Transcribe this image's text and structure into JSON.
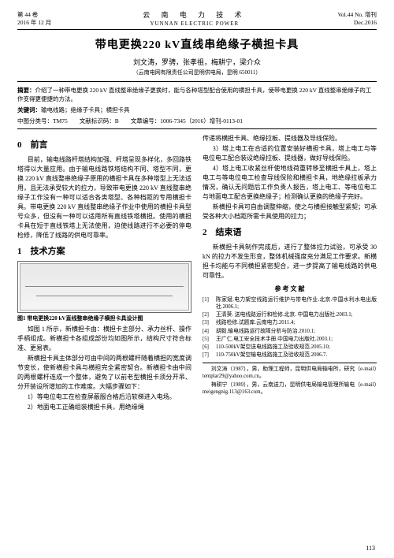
{
  "header": {
    "vol": "第 44 卷",
    "date": "2016 年 12 月",
    "journal_cn": "云 南 电 力 技 术",
    "journal_en": "YUNNAN ELECTRIC POWER",
    "vol_en": "Vol.44 No. 增刊",
    "date_en": "Dec.2016"
  },
  "title": "带电更换220 kV直线串绝缘子横担卡具",
  "authors": "刘文涛，罗骋，张孝祖，梅耕宁，梁介众",
  "affil": "（云南电网有限责任公司昆明供电局，昆明 650011）",
  "abstract": {
    "label": "摘要：",
    "text": "介绍了一种带电更换 220 kV 直线整串绝缘子更换时，能与各种塔型配合使用的横担卡具，使带电更换 220 kV 直线整串绝缘子的工作变得更便捷的方法。"
  },
  "keywords": {
    "label": "关键词：",
    "text": "输电线路；绝缘子卡具；横担卡具"
  },
  "class_line": "中图分类号：TM75　　文献标识码：B　　文章编号：1006-7345（2016）增刊-0113-01",
  "sec0": "0　前言",
  "p0a": "目前，输电线路杆塔结构加强、杆塔呈现多样化，多回路铁塔得以大量应用。由于输电线路铁塔结构不同、塔型不同，更换 220 kV 直线整串绝缘子原用的横担卡具在多种塔型上无法适用，且无法承受较大的拉力，导致带电更换 220 kV 直线整串绝缘子工作没有一种可以适合各类塔型、各种档距的专用横担卡具。带电更换 220 kV 直线整串绝缘子作业中使用的横担卡具型号众多，但没有一种可以适用所有直线铁塔横担。使用的横担卡具在短于直线铁塔上无法使用，迫使线路进行不必要的停电检修，降低了线路的供电可靠率。",
  "sec1": "1　技术方案",
  "fig_caption": "图1 带电更换220 kV直线整串绝缘子横担卡具设计图",
  "p1a": "如图 1 所示，新横担卡由：横担卡主部分、承力丝杆、操作手柄组成。新横担卡各组成部份均如图所示，结构尺寸符合标准、更易表。",
  "p1b": "新横担卡具主体部分可由中间的两根螺杆随着横担的宽度调节变长，使新横担卡具与横担完全紧密契合。新横担卡由中间的两根螺杆连成一个整体，避免了以前老型横担卡须分开吊、分开装设所增加的工作难度。大幅步骤如下：",
  "p1c": "1）等电位电工在检查屏蔽服合格后沿软梯进入电场。",
  "p1d": "2）地面电工正确组装横担卡具，用绝缘绳",
  "p2a": "传递将横担卡具、绝缘拉板、提线器及导线保险。",
  "p2b": "3）塔上电工在合适的位置安装好横担卡具，塔上电工与等电位电工配合装设绝缘拉板、提线器，做好导线保险。",
  "p2c": "4）塔上电工收紧丝杆使地线荷重转移至横担卡具上，塔上电工与等电位电工检查导线保险和横担卡具，地绝缘拉板承力情况，确认无问题后工作负责人报告，塔上电工、等电位电工与地面电工配合更换绝缘子；检测确认更换的绝缘子完好。",
  "p2d": "新横担卡具可自由调整伸缩，使之与横担接触型紧契；可承受各种大小档距所需卡具使用的拉力；",
  "sec2": "2　结束语",
  "p3a": "新横担卡具制作完成后，进行了整体拉力试验，可承受 30 kN 的拉力不发生形变，整体机械强度充分满足工作要求。新横担卡均能与不同横担紧密契合，进一步提高了输电线路的供电可靠性。",
  "refs_title": "参 考 文 献",
  "refs": [
    {
      "n": "[1]",
      "t": "陈家斌.电力架空线路运行维护与带电作业.北京.中国水利水电出版社.2006.1;"
    },
    {
      "n": "[2]",
      "t": "王清葵. 送电线路运行和检修.北京. 中国电力出版社.2003.1;"
    },
    {
      "n": "[3]",
      "t": "线路检修.试题库.云南电力.2011.4;"
    },
    {
      "n": "[4]",
      "t": "胡毅.输电线路运行故障分析与防治.2010.1;"
    },
    {
      "n": "[5]",
      "t": "王广仁.电工安全技术手册.中国电力出版社.2003.1;"
    },
    {
      "n": "[6]",
      "t": "110-500kV架空送电线路施工及验收规范.2005.10;"
    },
    {
      "n": "[7]",
      "t": "110-750kV架空输电线路施工及验收规范.2006.7."
    }
  ],
  "footer": {
    "a1": "刘文涛（1987），男，助理工程师，昆明供电局输电所，研究（e-mail）templar29@yahoo.com.cn。",
    "a2": "梅耕宁（1989），男，云南送力，昆明供电局输电管理所输电（e-mail）meigengnig.113@163.com。"
  },
  "pagenum": "113"
}
